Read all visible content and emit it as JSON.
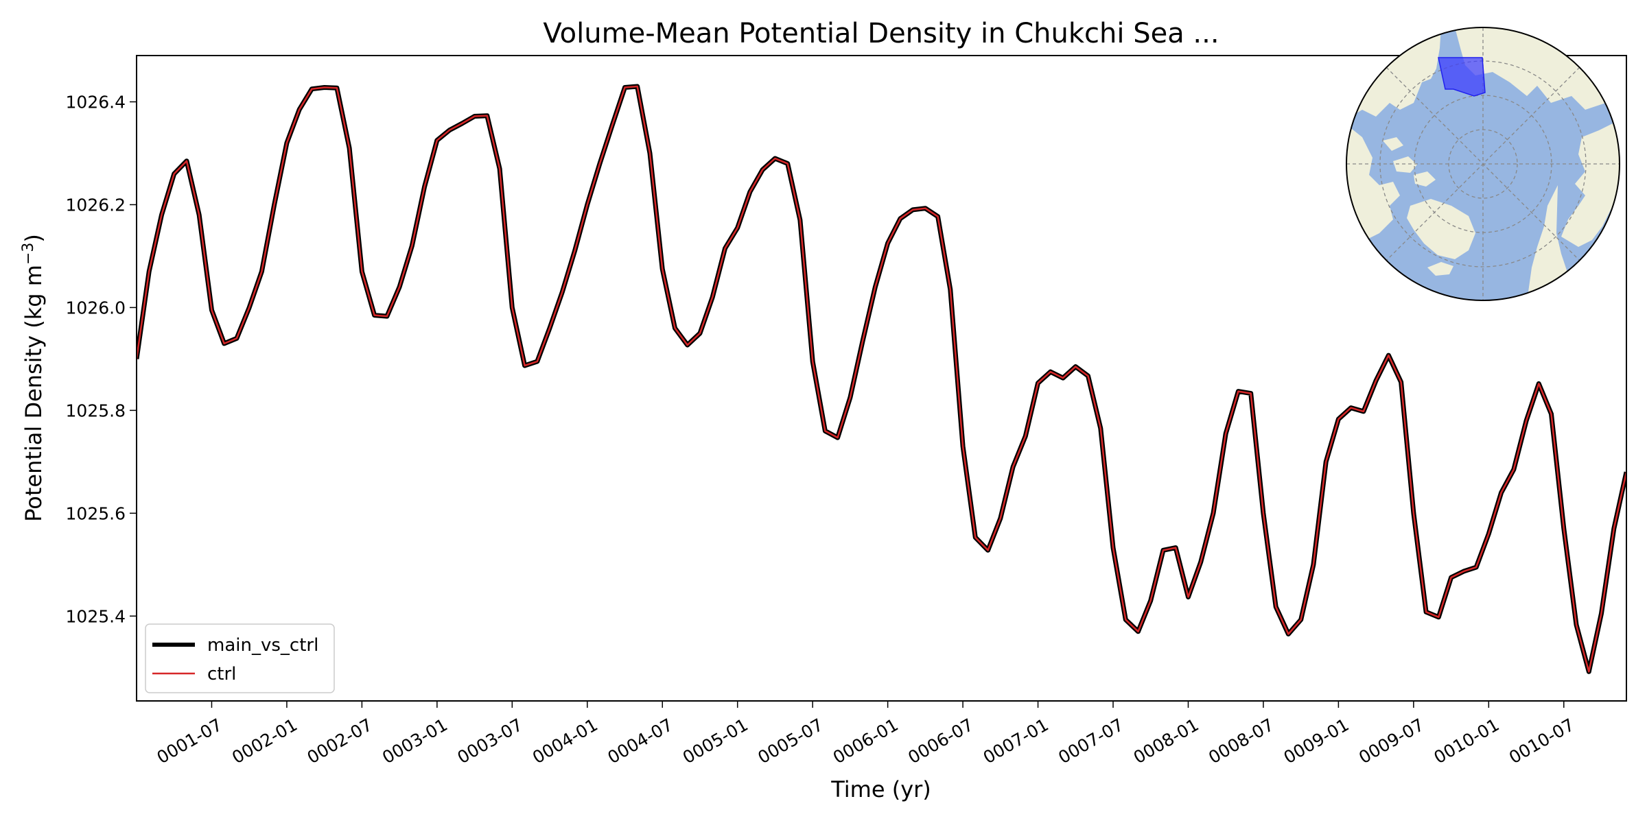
{
  "chart_data": {
    "type": "line",
    "title": "Volume-Mean Potential Density in Chukchi Sea ...",
    "xlabel": "Time (yr)",
    "ylabel_main": "Potential Density (kg m",
    "ylabel_sup": "−3",
    "ylabel_close": ")",
    "x_unit": "month index (month 1 = 0001-01)",
    "xlim": [
      1,
      120
    ],
    "ylim": [
      1025.235,
      1026.49
    ],
    "x_ticks": [
      {
        "label": "0001-07",
        "value": 7
      },
      {
        "label": "0002-01",
        "value": 13
      },
      {
        "label": "0002-07",
        "value": 19
      },
      {
        "label": "0003-01",
        "value": 25
      },
      {
        "label": "0003-07",
        "value": 31
      },
      {
        "label": "0004-01",
        "value": 37
      },
      {
        "label": "0004-07",
        "value": 43
      },
      {
        "label": "0005-01",
        "value": 49
      },
      {
        "label": "0005-07",
        "value": 55
      },
      {
        "label": "0006-01",
        "value": 61
      },
      {
        "label": "0006-07",
        "value": 67
      },
      {
        "label": "0007-01",
        "value": 73
      },
      {
        "label": "0007-07",
        "value": 79
      },
      {
        "label": "0008-01",
        "value": 85
      },
      {
        "label": "0008-07",
        "value": 91
      },
      {
        "label": "0009-01",
        "value": 97
      },
      {
        "label": "0009-07",
        "value": 103
      },
      {
        "label": "0010-01",
        "value": 109
      },
      {
        "label": "0010-07",
        "value": 115
      }
    ],
    "y_ticks": [
      {
        "label": "1025.4",
        "value": 1025.4
      },
      {
        "label": "1025.6",
        "value": 1025.6
      },
      {
        "label": "1025.8",
        "value": 1025.8
      },
      {
        "label": "1026.0",
        "value": 1026.0
      },
      {
        "label": "1026.2",
        "value": 1026.2
      },
      {
        "label": "1026.4",
        "value": 1026.4
      }
    ],
    "grid": false,
    "legend_position": "lower-left",
    "series": [
      {
        "name": "main_vs_ctrl",
        "color": "#000000",
        "style": "thick",
        "values": [
          1025.9,
          1026.07,
          1026.18,
          1026.26,
          1026.285,
          1026.18,
          1025.995,
          1025.93,
          1025.94,
          1026.0,
          1026.07,
          1026.2,
          1026.32,
          1026.385,
          1026.425,
          1026.428,
          1026.427,
          1026.31,
          1026.07,
          1025.985,
          1025.983,
          1026.04,
          1026.12,
          1026.235,
          1026.325,
          1026.345,
          1026.358,
          1026.372,
          1026.373,
          1026.27,
          1026.0,
          1025.887,
          1025.895,
          1025.96,
          1026.03,
          1026.11,
          1026.2,
          1026.28,
          1026.355,
          1026.428,
          1026.43,
          1026.3,
          1026.075,
          1025.96,
          1025.927,
          1025.95,
          1026.02,
          1026.115,
          1026.155,
          1026.225,
          1026.268,
          1026.29,
          1026.28,
          1026.17,
          1025.895,
          1025.76,
          1025.747,
          1025.825,
          1025.935,
          1026.04,
          1026.125,
          1026.173,
          1026.19,
          1026.193,
          1026.177,
          1026.035,
          1025.73,
          1025.553,
          1025.528,
          1025.59,
          1025.69,
          1025.75,
          1025.853,
          1025.875,
          1025.863,
          1025.885,
          1025.867,
          1025.765,
          1025.533,
          1025.393,
          1025.37,
          1025.43,
          1025.528,
          1025.533,
          1025.437,
          1025.505,
          1025.6,
          1025.755,
          1025.837,
          1025.833,
          1025.6,
          1025.418,
          1025.365,
          1025.393,
          1025.5,
          1025.7,
          1025.783,
          1025.805,
          1025.798,
          1025.858,
          1025.907,
          1025.855,
          1025.6,
          1025.408,
          1025.398,
          1025.475,
          1025.487,
          1025.495,
          1025.56,
          1025.64,
          1025.685,
          1025.78,
          1025.852,
          1025.793,
          1025.57,
          1025.383,
          1025.292,
          1025.405,
          1025.57,
          1025.68
        ]
      },
      {
        "name": "ctrl",
        "color": "#d62728",
        "style": "thin",
        "same_as": "main_vs_ctrl"
      }
    ]
  },
  "inset_map": {
    "projection": "north-polar-stereographic",
    "ocean_color": "#97b6e1",
    "land_color": "#efefdb",
    "region_color": "#3b3bff"
  }
}
